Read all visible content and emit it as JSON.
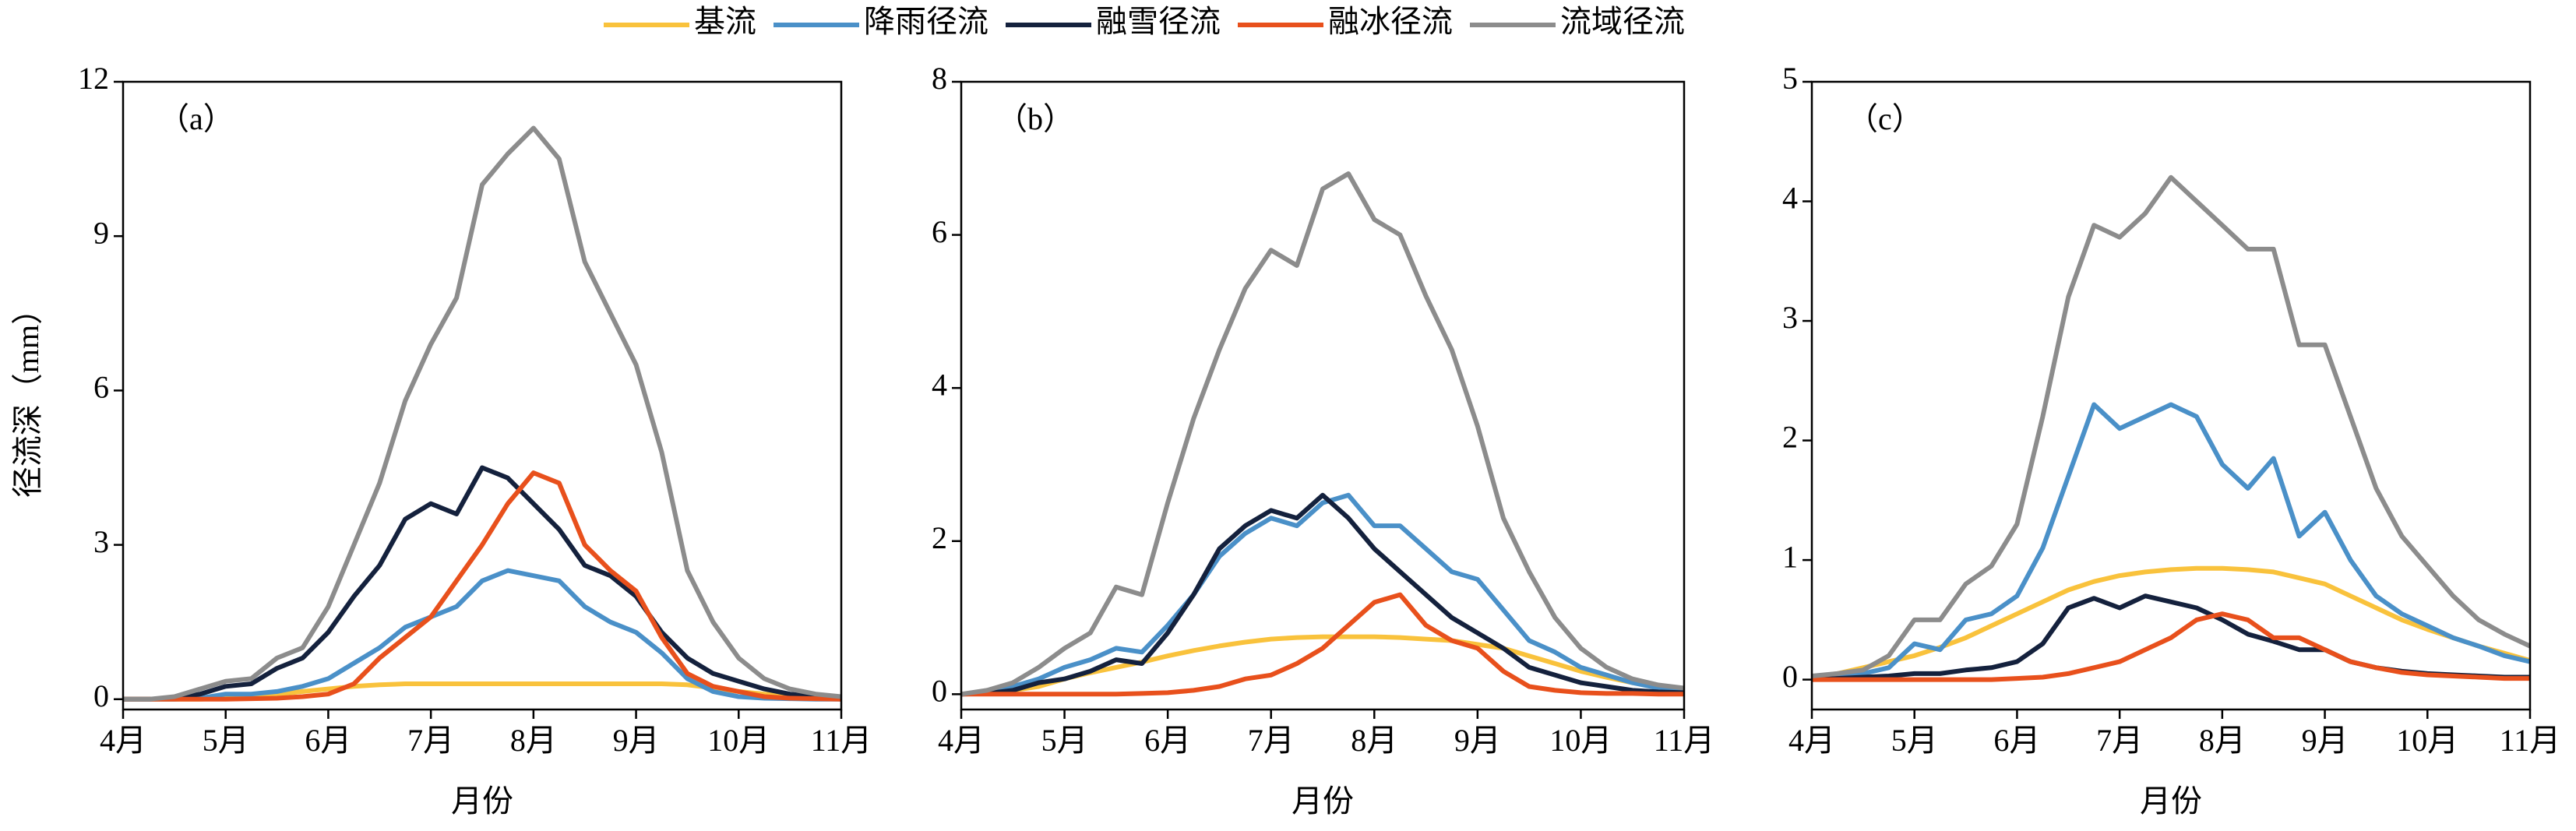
{
  "legend": [
    {
      "name": "基流",
      "color": "#f9c23c"
    },
    {
      "name": "降雨径流",
      "color": "#4a90c8"
    },
    {
      "name": "融雪径流",
      "color": "#14213d"
    },
    {
      "name": "融冰径流",
      "color": "#e8501c"
    },
    {
      "name": "流域径流",
      "color": "#8c8c8c"
    }
  ],
  "ylabel": "径流深（mm）",
  "chart_data": [
    {
      "type": "line",
      "panel_label": "（a）",
      "xlabel": "月份",
      "x": [
        4,
        4.25,
        4.5,
        4.75,
        5,
        5.25,
        5.5,
        5.75,
        6,
        6.25,
        6.5,
        6.75,
        7,
        7.25,
        7.5,
        7.75,
        8,
        8.25,
        8.5,
        8.75,
        9,
        9.25,
        9.5,
        9.75,
        10,
        10.25,
        10.5,
        10.75,
        11
      ],
      "xlim": [
        4,
        11
      ],
      "xticks": [
        {
          "value": 4,
          "label": "4月"
        },
        {
          "value": 5,
          "label": "5月"
        },
        {
          "value": 6,
          "label": "6月"
        },
        {
          "value": 7,
          "label": "7月"
        },
        {
          "value": 8,
          "label": "8月"
        },
        {
          "value": 9,
          "label": "9月"
        },
        {
          "value": 10,
          "label": "10月"
        },
        {
          "value": 11,
          "label": "11月"
        }
      ],
      "ylim": [
        -0.2,
        12
      ],
      "yticks": [
        0,
        3,
        6,
        9,
        12
      ],
      "series": [
        {
          "values": [
            0,
            0,
            0,
            0,
            0.02,
            0.05,
            0.1,
            0.15,
            0.2,
            0.25,
            0.28,
            0.3,
            0.3,
            0.3,
            0.3,
            0.3,
            0.3,
            0.3,
            0.3,
            0.3,
            0.3,
            0.3,
            0.28,
            0.22,
            0.15,
            0.1,
            0.06,
            0.03,
            0.01
          ]
        },
        {
          "values": [
            0,
            0,
            0,
            0.02,
            0.1,
            0.1,
            0.15,
            0.25,
            0.4,
            0.7,
            1.0,
            1.4,
            1.6,
            1.8,
            2.3,
            2.5,
            2.4,
            2.3,
            1.8,
            1.5,
            1.3,
            0.9,
            0.4,
            0.15,
            0.05,
            0.02,
            0.01,
            0,
            0
          ]
        },
        {
          "values": [
            0,
            0,
            0.02,
            0.1,
            0.25,
            0.3,
            0.6,
            0.8,
            1.3,
            2.0,
            2.6,
            3.5,
            3.8,
            3.6,
            4.5,
            4.3,
            3.8,
            3.3,
            2.6,
            2.4,
            2.0,
            1.3,
            0.8,
            0.5,
            0.35,
            0.2,
            0.1,
            0.05,
            0.02
          ]
        },
        {
          "values": [
            0,
            0,
            0,
            0,
            0,
            0.01,
            0.02,
            0.05,
            0.1,
            0.3,
            0.8,
            1.2,
            1.6,
            2.3,
            3.0,
            3.8,
            4.4,
            4.2,
            3.0,
            2.5,
            2.1,
            1.2,
            0.5,
            0.25,
            0.15,
            0.05,
            0.02,
            0.01,
            0
          ]
        },
        {
          "values": [
            0,
            0,
            0.05,
            0.2,
            0.35,
            0.4,
            0.8,
            1.0,
            1.8,
            3.0,
            4.2,
            5.8,
            6.9,
            7.8,
            10.0,
            10.6,
            11.1,
            10.5,
            8.5,
            7.5,
            6.5,
            4.8,
            2.5,
            1.5,
            0.8,
            0.4,
            0.2,
            0.1,
            0.05
          ]
        }
      ]
    },
    {
      "type": "line",
      "panel_label": "（b）",
      "xlabel": "月份",
      "x": [
        4,
        4.25,
        4.5,
        4.75,
        5,
        5.25,
        5.5,
        5.75,
        6,
        6.25,
        6.5,
        6.75,
        7,
        7.25,
        7.5,
        7.75,
        8,
        8.25,
        8.5,
        8.75,
        9,
        9.25,
        9.5,
        9.75,
        10,
        10.25,
        10.5,
        10.75,
        11
      ],
      "xlim": [
        4,
        11
      ],
      "xticks": [
        {
          "value": 4,
          "label": "4月"
        },
        {
          "value": 5,
          "label": "5月"
        },
        {
          "value": 6,
          "label": "6月"
        },
        {
          "value": 7,
          "label": "7月"
        },
        {
          "value": 8,
          "label": "8月"
        },
        {
          "value": 9,
          "label": "9月"
        },
        {
          "value": 10,
          "label": "10月"
        },
        {
          "value": 11,
          "label": "11月"
        }
      ],
      "ylim": [
        -0.2,
        8
      ],
      "yticks": [
        0,
        2,
        4,
        6,
        8
      ],
      "series": [
        {
          "values": [
            0,
            0.02,
            0.05,
            0.1,
            0.2,
            0.28,
            0.35,
            0.42,
            0.5,
            0.57,
            0.63,
            0.68,
            0.72,
            0.74,
            0.75,
            0.75,
            0.75,
            0.74,
            0.72,
            0.7,
            0.65,
            0.6,
            0.5,
            0.4,
            0.3,
            0.22,
            0.15,
            0.1,
            0.05
          ]
        },
        {
          "values": [
            0,
            0.02,
            0.1,
            0.2,
            0.35,
            0.45,
            0.6,
            0.55,
            0.9,
            1.3,
            1.8,
            2.1,
            2.3,
            2.2,
            2.5,
            2.6,
            2.2,
            2.2,
            1.9,
            1.6,
            1.5,
            1.1,
            0.7,
            0.55,
            0.35,
            0.25,
            0.15,
            0.08,
            0.05
          ]
        },
        {
          "values": [
            0,
            0.01,
            0.05,
            0.15,
            0.2,
            0.3,
            0.45,
            0.4,
            0.8,
            1.3,
            1.9,
            2.2,
            2.4,
            2.3,
            2.6,
            2.3,
            1.9,
            1.6,
            1.3,
            1.0,
            0.8,
            0.6,
            0.35,
            0.25,
            0.15,
            0.1,
            0.05,
            0.03,
            0.02
          ]
        },
        {
          "values": [
            0,
            0,
            0,
            0,
            0,
            0,
            0,
            0.01,
            0.02,
            0.05,
            0.1,
            0.2,
            0.25,
            0.4,
            0.6,
            0.9,
            1.2,
            1.3,
            0.9,
            0.7,
            0.6,
            0.3,
            0.1,
            0.05,
            0.02,
            0.01,
            0.01,
            0,
            0
          ]
        },
        {
          "values": [
            0,
            0.05,
            0.15,
            0.35,
            0.6,
            0.8,
            1.4,
            1.3,
            2.5,
            3.6,
            4.5,
            5.3,
            5.8,
            5.6,
            6.6,
            6.8,
            6.2,
            6.0,
            5.2,
            4.5,
            3.5,
            2.3,
            1.6,
            1.0,
            0.6,
            0.35,
            0.2,
            0.12,
            0.08
          ]
        }
      ]
    },
    {
      "type": "line",
      "panel_label": "（c）",
      "xlabel": "月份",
      "x": [
        4,
        4.25,
        4.5,
        4.75,
        5,
        5.25,
        5.5,
        5.75,
        6,
        6.25,
        6.5,
        6.75,
        7,
        7.25,
        7.5,
        7.75,
        8,
        8.25,
        8.5,
        8.75,
        9,
        9.25,
        9.5,
        9.75,
        10,
        10.25,
        10.5,
        10.75,
        11
      ],
      "xlim": [
        4,
        11
      ],
      "xticks": [
        {
          "value": 4,
          "label": "4月"
        },
        {
          "value": 5,
          "label": "5月"
        },
        {
          "value": 6,
          "label": "6月"
        },
        {
          "value": 7,
          "label": "7月"
        },
        {
          "value": 8,
          "label": "8月"
        },
        {
          "value": 9,
          "label": "9月"
        },
        {
          "value": 10,
          "label": "10月"
        },
        {
          "value": 11,
          "label": "11月"
        }
      ],
      "ylim": [
        -0.25,
        5
      ],
      "yticks": [
        0,
        1,
        2,
        3,
        4,
        5
      ],
      "series": [
        {
          "values": [
            0.02,
            0.05,
            0.1,
            0.15,
            0.2,
            0.27,
            0.35,
            0.45,
            0.55,
            0.65,
            0.75,
            0.82,
            0.87,
            0.9,
            0.92,
            0.93,
            0.93,
            0.92,
            0.9,
            0.85,
            0.8,
            0.7,
            0.6,
            0.5,
            0.42,
            0.35,
            0.28,
            0.22,
            0.16
          ]
        },
        {
          "values": [
            0.02,
            0.03,
            0.05,
            0.1,
            0.3,
            0.25,
            0.5,
            0.55,
            0.7,
            1.1,
            1.7,
            2.3,
            2.1,
            2.2,
            2.3,
            2.2,
            1.8,
            1.6,
            1.85,
            1.2,
            1.4,
            1.0,
            0.7,
            0.55,
            0.45,
            0.35,
            0.28,
            0.2,
            0.15
          ]
        },
        {
          "values": [
            0,
            0.01,
            0.02,
            0.03,
            0.05,
            0.05,
            0.08,
            0.1,
            0.15,
            0.3,
            0.6,
            0.68,
            0.6,
            0.7,
            0.65,
            0.6,
            0.5,
            0.38,
            0.32,
            0.25,
            0.25,
            0.15,
            0.1,
            0.07,
            0.05,
            0.04,
            0.03,
            0.02,
            0.02
          ]
        },
        {
          "values": [
            0,
            0,
            0,
            0,
            0,
            0,
            0,
            0,
            0.01,
            0.02,
            0.05,
            0.1,
            0.15,
            0.25,
            0.35,
            0.5,
            0.55,
            0.5,
            0.35,
            0.35,
            0.25,
            0.15,
            0.1,
            0.06,
            0.04,
            0.03,
            0.02,
            0.01,
            0.01
          ]
        },
        {
          "values": [
            0.03,
            0.05,
            0.08,
            0.2,
            0.5,
            0.5,
            0.8,
            0.95,
            1.3,
            2.2,
            3.2,
            3.8,
            3.7,
            3.9,
            4.2,
            4.0,
            3.8,
            3.6,
            3.6,
            2.8,
            2.8,
            2.2,
            1.6,
            1.2,
            0.95,
            0.7,
            0.5,
            0.38,
            0.28
          ]
        }
      ]
    }
  ]
}
